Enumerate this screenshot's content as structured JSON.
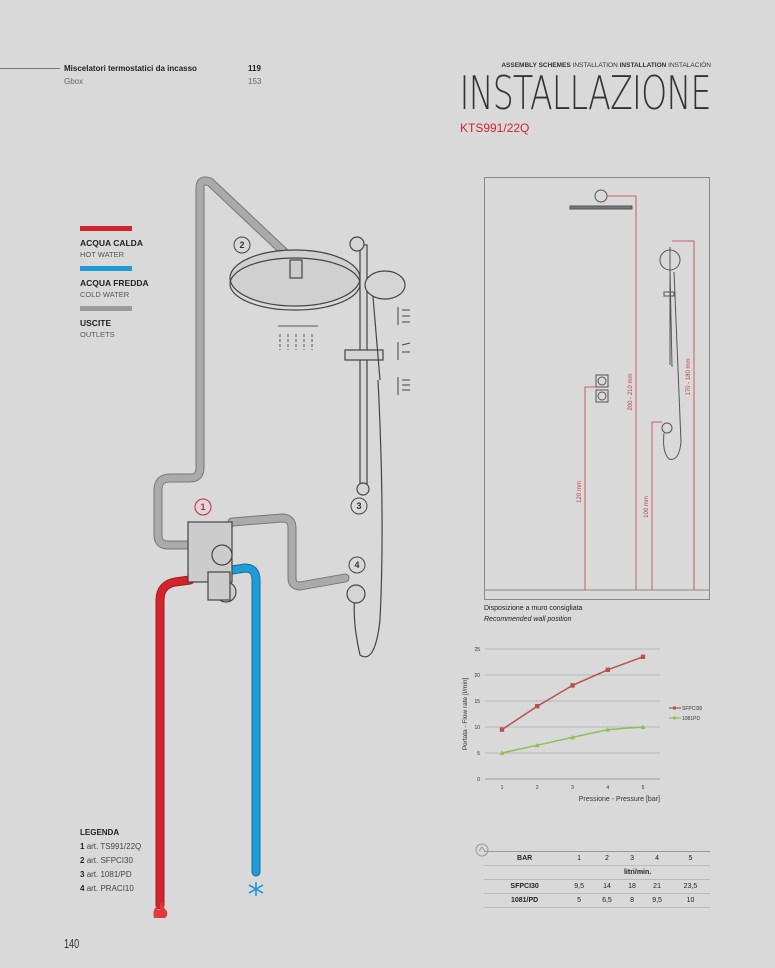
{
  "header": {
    "toc": [
      {
        "label": "Miscelatori termostatici da incasso",
        "page": "119"
      },
      {
        "label": "Gbox",
        "page": "153"
      }
    ],
    "breadcrumb": [
      {
        "text": "ASSEMBLY SCHEMES",
        "bold": true
      },
      {
        "text": "INSTALLATION",
        "bold": false
      },
      {
        "text": "INSTALLATION",
        "bold": true
      },
      {
        "text": "INSTALACIÓN",
        "bold": false
      }
    ],
    "title": "INSTALLAZIONE",
    "model": "KTS991/22Q"
  },
  "colors": {
    "hot": "#d3232c",
    "cold": "#1f9bd6",
    "outlet": "#9a9a9a",
    "accent": "#d3232c",
    "background": "#d9d9d9"
  },
  "key": [
    {
      "title": "ACQUA CALDA",
      "subtitle": "HOT WATER",
      "color": "#d3232c"
    },
    {
      "title": "ACQUA FREDDA",
      "subtitle": "COLD WATER",
      "color": "#1f9bd6"
    },
    {
      "title": "USCITE",
      "subtitle": "OUTLETS",
      "color": "#9a9a9a"
    }
  ],
  "diagram": {
    "callouts": [
      "1",
      "2",
      "3",
      "4"
    ],
    "icons": [
      "flame-icon",
      "snowflake-icon"
    ]
  },
  "legend": {
    "title": "LEGENDA",
    "items": [
      {
        "num": "1",
        "text": "art. TS991/22Q"
      },
      {
        "num": "2",
        "text": "art. SFPCI30"
      },
      {
        "num": "3",
        "text": "art. 1081/PD"
      },
      {
        "num": "4",
        "text": "art. PRACI10"
      }
    ]
  },
  "wall": {
    "dims": [
      "200 - 210 mm",
      "170 - 180 mm",
      "120 mm",
      "100 mm"
    ],
    "caption": "Disposizione a muro consigliata",
    "caption_en": "Recommended wall position"
  },
  "chart_data": {
    "type": "line",
    "xlabel": "Pressione - Pressure [bar]",
    "ylabel": "Portata - Flow rate [l/min]",
    "x": [
      1,
      2,
      3,
      4,
      5
    ],
    "ylim": [
      0,
      25
    ],
    "yticks": [
      "0",
      "5",
      "10",
      "15",
      "20",
      "25"
    ],
    "xticks": [
      "1",
      "2",
      "3",
      "4",
      "5"
    ],
    "grid": true,
    "legend_position": "right",
    "series": [
      {
        "name": "SFPCI30",
        "values": [
          9.5,
          14,
          18,
          21,
          23.5
        ],
        "color": "#b5524a",
        "marker": "square"
      },
      {
        "name": "1081PD",
        "values": [
          5,
          6.5,
          8,
          9.5,
          10
        ],
        "color": "#8fbf5a",
        "marker": "triangle"
      }
    ]
  },
  "table": {
    "header": [
      "BAR",
      "1",
      "2",
      "3",
      "4",
      "5"
    ],
    "unit": "litri/min.",
    "rows": [
      {
        "label": "SFPCI30",
        "values": [
          "9,5",
          "14",
          "18",
          "21",
          "23,5"
        ]
      },
      {
        "label": "1081/PD",
        "values": [
          "5",
          "6,5",
          "8",
          "9,5",
          "10"
        ]
      }
    ]
  },
  "page_number": "140"
}
